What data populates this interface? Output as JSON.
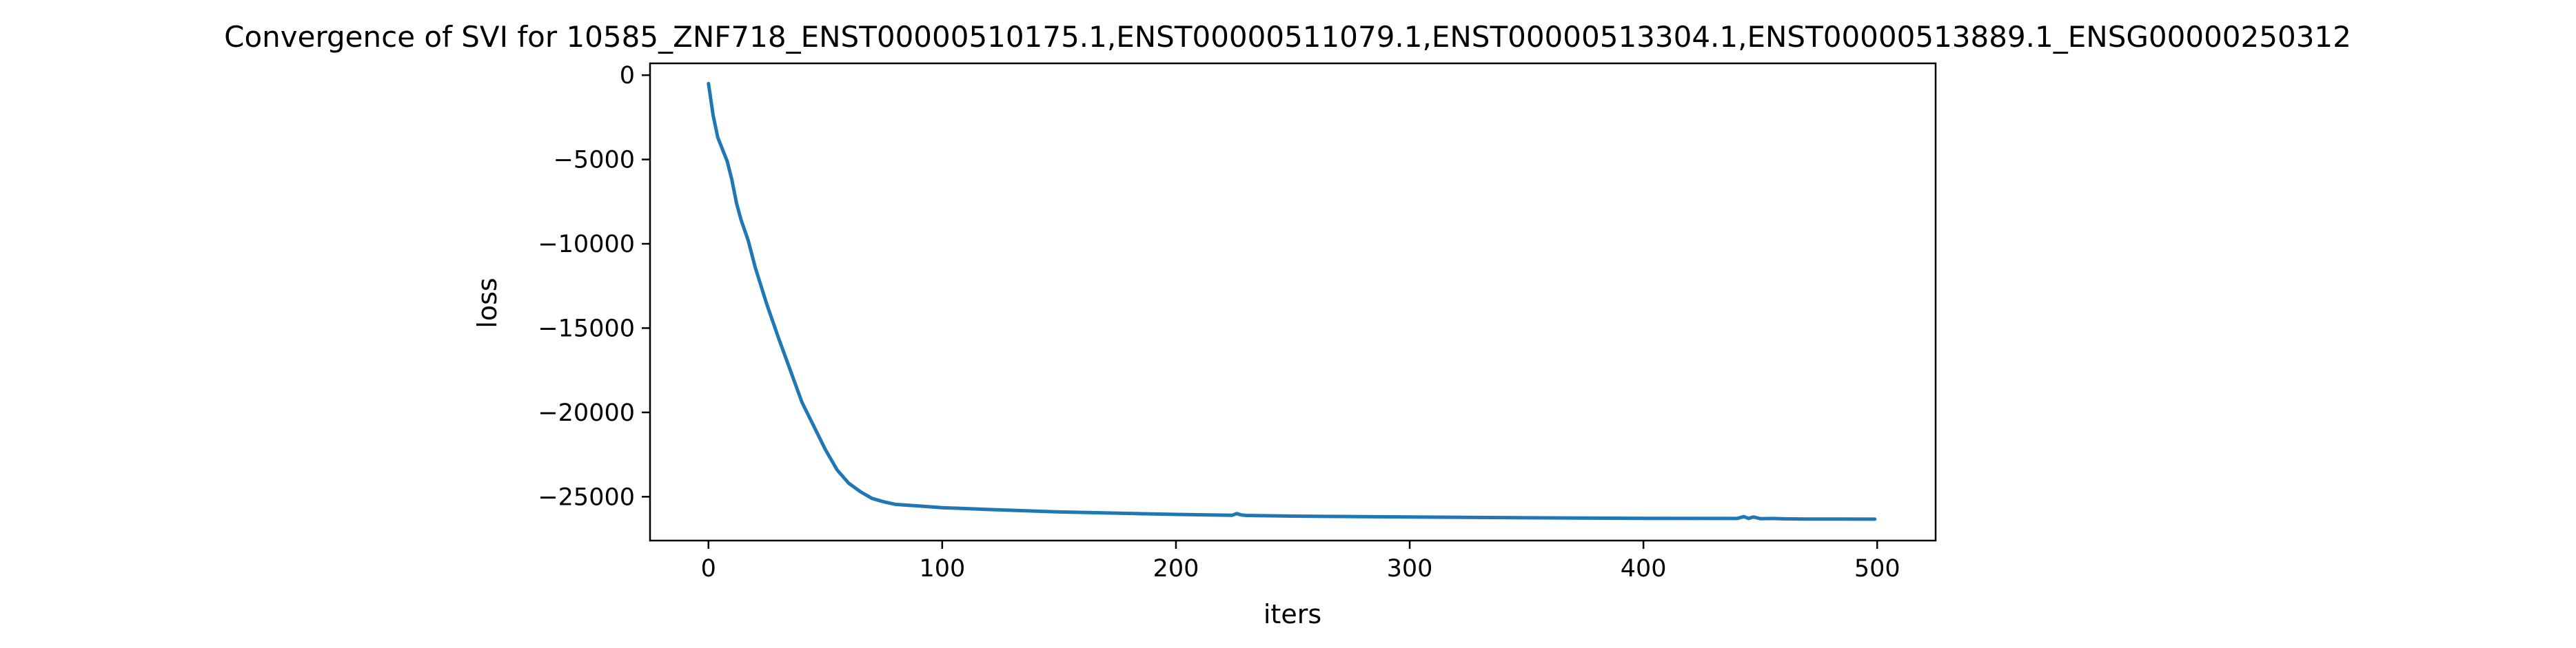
{
  "chart_data": {
    "type": "line",
    "title": "Convergence of SVI for 10585_ZNF718_ENST00000510175.1,ENST00000511079.1,ENST00000513304.1,ENST00000513889.1_ENSG00000250312",
    "xlabel": "iters",
    "ylabel": "loss",
    "xlim": [
      -25,
      525
    ],
    "ylim": [
      -27600,
      700
    ],
    "xticks": [
      0,
      100,
      200,
      300,
      400,
      500
    ],
    "xtick_labels": [
      "0",
      "100",
      "200",
      "300",
      "400",
      "500"
    ],
    "yticks": [
      0,
      -5000,
      -10000,
      -15000,
      -20000,
      -25000
    ],
    "ytick_labels": [
      "0",
      "−5000",
      "−10000",
      "−15000",
      "−20000",
      "−25000"
    ],
    "grid": false,
    "legend": "none",
    "series": [
      {
        "color": "#1f77b4",
        "x": [
          0,
          2,
          4,
          6,
          8,
          10,
          12,
          14,
          17,
          20,
          25,
          30,
          35,
          40,
          45,
          50,
          55,
          60,
          65,
          70,
          75,
          80,
          85,
          90,
          95,
          100,
          110,
          120,
          150,
          200,
          224,
          226,
          228,
          230,
          250,
          300,
          350,
          400,
          440,
          443,
          445,
          447,
          450,
          455,
          460,
          470,
          499
        ],
        "y": [
          -500,
          -2400,
          -3700,
          -4400,
          -5100,
          -6200,
          -7600,
          -8600,
          -9800,
          -11400,
          -13600,
          -15600,
          -17500,
          -19400,
          -20800,
          -22200,
          -23400,
          -24200,
          -24700,
          -25100,
          -25300,
          -25450,
          -25500,
          -25550,
          -25600,
          -25650,
          -25700,
          -25760,
          -25900,
          -26050,
          -26100,
          -26000,
          -26080,
          -26110,
          -26150,
          -26200,
          -26250,
          -26280,
          -26290,
          -26180,
          -26290,
          -26200,
          -26300,
          -26290,
          -26310,
          -26320,
          -26330
        ]
      }
    ]
  }
}
